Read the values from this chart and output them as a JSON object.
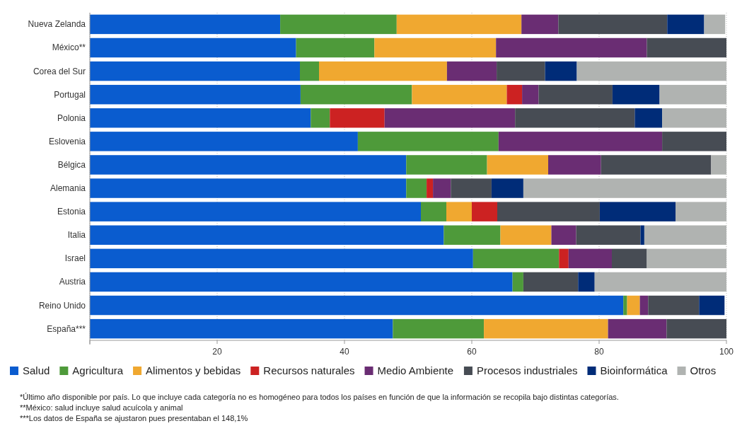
{
  "chart_data": {
    "type": "bar",
    "orientation": "horizontal",
    "stacked": true,
    "categories": [
      "Nueva Zelanda",
      "México**",
      "Corea del Sur",
      "Portugal",
      "Polonia",
      "Eslovenia",
      "Bélgica",
      "Alemania",
      "Estonia",
      "Italia",
      "Israel",
      "Austria",
      "Reino Unido",
      "España***"
    ],
    "series": [
      {
        "name": "Salud",
        "color": "#0a5ccf",
        "values": [
          29.9,
          32.4,
          33.0,
          33.1,
          34.7,
          42.1,
          49.7,
          49.7,
          52.0,
          55.6,
          60.2,
          66.4,
          83.8,
          47.6
        ]
      },
      {
        "name": "Agricultura",
        "color": "#4e9a3a",
        "values": [
          18.3,
          12.3,
          3.0,
          17.5,
          3.0,
          22.1,
          12.7,
          3.2,
          4.0,
          8.9,
          13.5,
          1.7,
          0.6,
          14.3
        ]
      },
      {
        "name": "Alimentos y bebidas",
        "color": "#f0a830",
        "values": [
          19.6,
          19.1,
          20.1,
          14.9,
          0,
          0,
          9.6,
          0,
          4.0,
          8.0,
          0,
          0,
          2.0,
          19.5
        ]
      },
      {
        "name": "Recursos naturales",
        "color": "#cc2222",
        "values": [
          0,
          0,
          0,
          2.4,
          8.6,
          0,
          0,
          1.0,
          4.0,
          0,
          1.5,
          0,
          0,
          0
        ]
      },
      {
        "name": "Medio Ambiente",
        "color": "#6a2d73",
        "values": [
          5.8,
          23.7,
          7.8,
          2.6,
          20.5,
          25.7,
          8.3,
          2.8,
          0,
          3.9,
          6.8,
          0,
          1.3,
          9.2
        ]
      },
      {
        "name": "Procesos industriales",
        "color": "#474c54",
        "values": [
          17.1,
          12.5,
          7.6,
          11.6,
          18.8,
          10.1,
          17.3,
          6.4,
          16.1,
          10.1,
          5.5,
          8.6,
          8.0,
          9.4
        ]
      },
      {
        "name": "Bioinformática",
        "color": "#002c78",
        "values": [
          5.8,
          0,
          5.0,
          7.4,
          4.3,
          0,
          0,
          5.0,
          11.9,
          0.6,
          0,
          2.6,
          4.0,
          0
        ]
      },
      {
        "name": "Otros",
        "color": "#b0b3b1",
        "values": [
          3.3,
          0,
          23.5,
          10.5,
          10.1,
          0,
          2.4,
          31.9,
          8.0,
          12.9,
          12.5,
          20.7,
          0,
          0
        ]
      }
    ],
    "xlim": [
      0,
      100
    ],
    "xticks": [
      {
        "value": 0,
        "label": null
      },
      20,
      40,
      60,
      80,
      100
    ],
    "grid": "x",
    "legend": "bottom",
    "annotations": [
      "*Último año disponible por país. Lo que incluye cada categoría no es homogéneo para todos los países en función de que la información se recopila bajo distintas categorías.",
      "**México: salud incluye salud acuícola y animal",
      "***Los datos de España se ajustaron pues presentaban el 148,1%"
    ]
  }
}
